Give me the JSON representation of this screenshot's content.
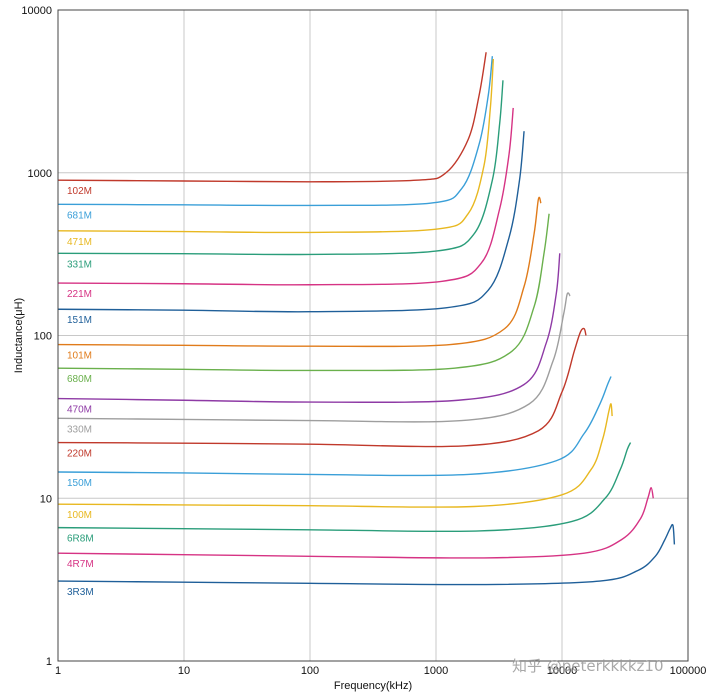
{
  "chart_data": {
    "type": "line",
    "title": "",
    "xlabel": "Frequency(kHz)",
    "ylabel": "Inductance(μH)",
    "xscale": "log",
    "yscale": "log",
    "xlim": [
      1,
      100000
    ],
    "ylim": [
      1,
      10000
    ],
    "x_ticks": [
      "1",
      "10",
      "100",
      "1000",
      "10000",
      "100000"
    ],
    "y_ticks": [
      "1",
      "10",
      "100",
      "1000",
      "10000"
    ],
    "grid": true,
    "legend": "inline labels at left of each curve",
    "series": [
      {
        "name": "102M",
        "color": "#c0392b",
        "x": [
          1,
          10,
          100,
          700,
          1200,
          1800,
          2200,
          2500
        ],
        "y": [
          900,
          890,
          880,
          900,
          1000,
          1600,
          3000,
          5500
        ]
      },
      {
        "name": "681M",
        "color": "#3a9fd8",
        "x": [
          1,
          10,
          100,
          900,
          1600,
          2200,
          2600,
          2800
        ],
        "y": [
          640,
          635,
          630,
          650,
          800,
          1500,
          3000,
          5200
        ]
      },
      {
        "name": "471M",
        "color": "#e8b820",
        "x": [
          1,
          10,
          100,
          1000,
          1800,
          2400,
          2700,
          2850
        ],
        "y": [
          440,
          435,
          430,
          450,
          560,
          1100,
          2500,
          5000
        ]
      },
      {
        "name": "331M",
        "color": "#2a9d7a",
        "x": [
          1,
          10,
          100,
          1000,
          2000,
          2800,
          3200,
          3400
        ],
        "y": [
          320,
          318,
          315,
          330,
          420,
          900,
          2000,
          3700
        ]
      },
      {
        "name": "221M",
        "color": "#d63384",
        "x": [
          1,
          10,
          100,
          1100,
          2300,
          3200,
          3800,
          4100
        ],
        "y": [
          210,
          208,
          205,
          215,
          280,
          600,
          1300,
          2500
        ]
      },
      {
        "name": "151M",
        "color": "#1f5f99",
        "x": [
          1,
          10,
          100,
          1200,
          2600,
          3800,
          4600,
          5000
        ],
        "y": [
          145,
          143,
          140,
          148,
          190,
          400,
          900,
          1800
        ]
      },
      {
        "name": "101M",
        "color": "#e07b1a",
        "x": [
          1,
          10,
          100,
          1300,
          3500,
          5000,
          6000,
          6500,
          6800
        ],
        "y": [
          88,
          87,
          86,
          88,
          110,
          200,
          420,
          690,
          650
        ]
      },
      {
        "name": "680M",
        "color": "#6ab04c",
        "x": [
          1,
          10,
          100,
          1400,
          4000,
          6000,
          7200,
          7900
        ],
        "y": [
          63,
          62,
          61,
          63,
          80,
          150,
          320,
          560
        ]
      },
      {
        "name": "470M",
        "color": "#8e3aa5",
        "x": [
          1,
          10,
          100,
          1500,
          5000,
          7500,
          9000,
          9600
        ],
        "y": [
          41,
          40,
          39,
          40,
          50,
          90,
          180,
          320
        ]
      },
      {
        "name": "330M",
        "color": "#9e9e9e",
        "x": [
          1,
          10,
          100,
          1600,
          5500,
          8500,
          10300,
          11000,
          11600
        ],
        "y": [
          31,
          30.5,
          30,
          30,
          38,
          70,
          135,
          180,
          175
        ]
      },
      {
        "name": "220M",
        "color": "#c0392b",
        "x": [
          1,
          10,
          100,
          1700,
          6500,
          10000,
          12500,
          14000,
          15000,
          15500
        ],
        "y": [
          22,
          21.8,
          21.5,
          21,
          26,
          45,
          80,
          105,
          110,
          100
        ]
      },
      {
        "name": "150M",
        "color": "#3a9fd8",
        "x": [
          1,
          10,
          100,
          1800,
          9000,
          15000,
          20000,
          23000,
          24500
        ],
        "y": [
          14.5,
          14.3,
          14,
          14,
          17,
          25,
          38,
          50,
          56
        ]
      },
      {
        "name": "100M",
        "color": "#e8b820",
        "x": [
          1,
          10,
          100,
          2000,
          10000,
          17000,
          21000,
          23500,
          24500,
          25000
        ],
        "y": [
          9.2,
          9.1,
          9,
          8.9,
          10.5,
          15,
          23,
          34,
          38,
          32
        ]
      },
      {
        "name": "6R8M",
        "color": "#2a9d7a",
        "x": [
          1,
          10,
          100,
          2200,
          12000,
          22000,
          29000,
          33000,
          35000
        ],
        "y": [
          6.6,
          6.5,
          6.4,
          6.3,
          7.2,
          10,
          15,
          20,
          22
        ]
      },
      {
        "name": "4R7M",
        "color": "#d63384",
        "x": [
          1,
          10,
          100,
          2400,
          15000,
          30000,
          42000,
          48000,
          51000,
          53000
        ],
        "y": [
          4.6,
          4.5,
          4.4,
          4.3,
          4.6,
          5.6,
          7.5,
          10,
          11.6,
          10
        ]
      },
      {
        "name": "3R3M",
        "color": "#1f5f99",
        "x": [
          1,
          10,
          100,
          2500,
          20000,
          40000,
          55000,
          65000,
          72000,
          76000,
          78000
        ],
        "y": [
          3.1,
          3.05,
          3,
          2.95,
          3.1,
          3.6,
          4.4,
          5.5,
          6.5,
          6.8,
          5.2
        ]
      }
    ]
  },
  "watermark": {
    "text": "知乎 @peterkkkkz10"
  }
}
